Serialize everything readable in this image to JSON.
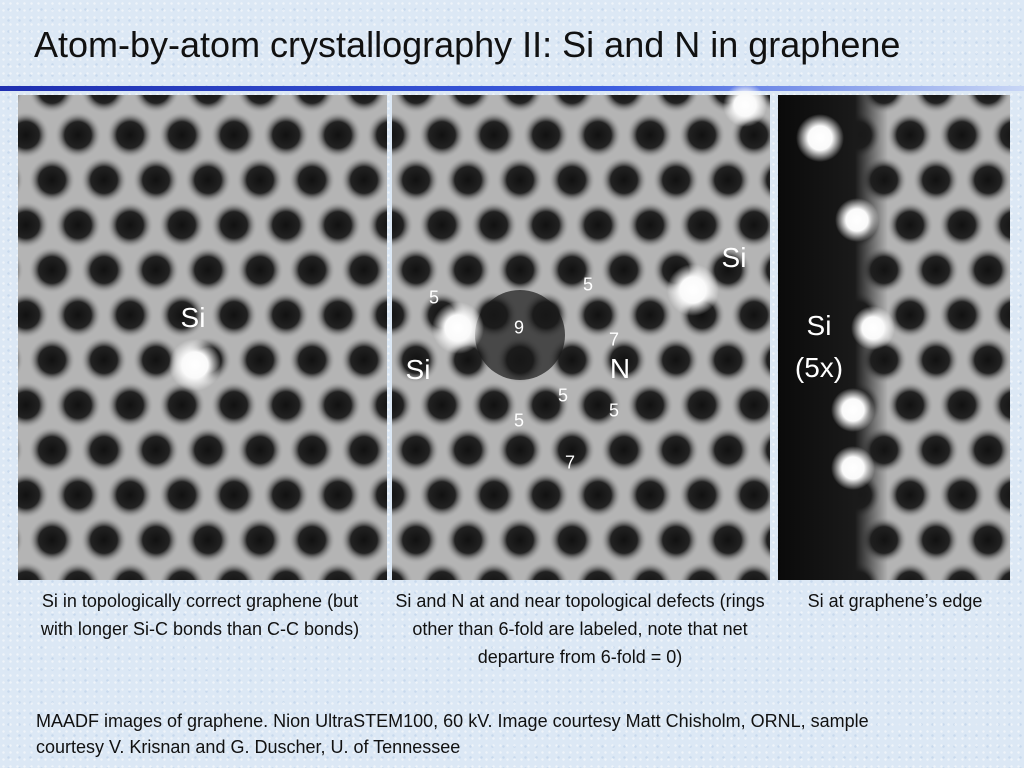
{
  "title": "Atom-by-atom crystallography II: Si and N in graphene",
  "panels": [
    {
      "labels": [
        "Si"
      ],
      "caption": "Si in topologically correct graphene (but with longer Si-C bonds than C-C bonds)"
    },
    {
      "labels": [
        "5",
        "5",
        "9",
        "7",
        "Si",
        "N",
        "5",
        "5",
        "5",
        "7",
        "Si"
      ],
      "caption": "Si and N at and near topological defects (rings other than 6-fold are labeled, note that net departure from 6-fold = 0)"
    },
    {
      "labels": [
        "Si",
        "(5x)"
      ],
      "caption": "Si at graphene’s edge"
    }
  ],
  "footer": "MAADF images of graphene.  Nion UltraSTEM100, 60 kV.  Image courtesy Matt Chisholm, ORNL, sample courtesy V. Krisnan and G. Duscher, U. of Tennessee"
}
